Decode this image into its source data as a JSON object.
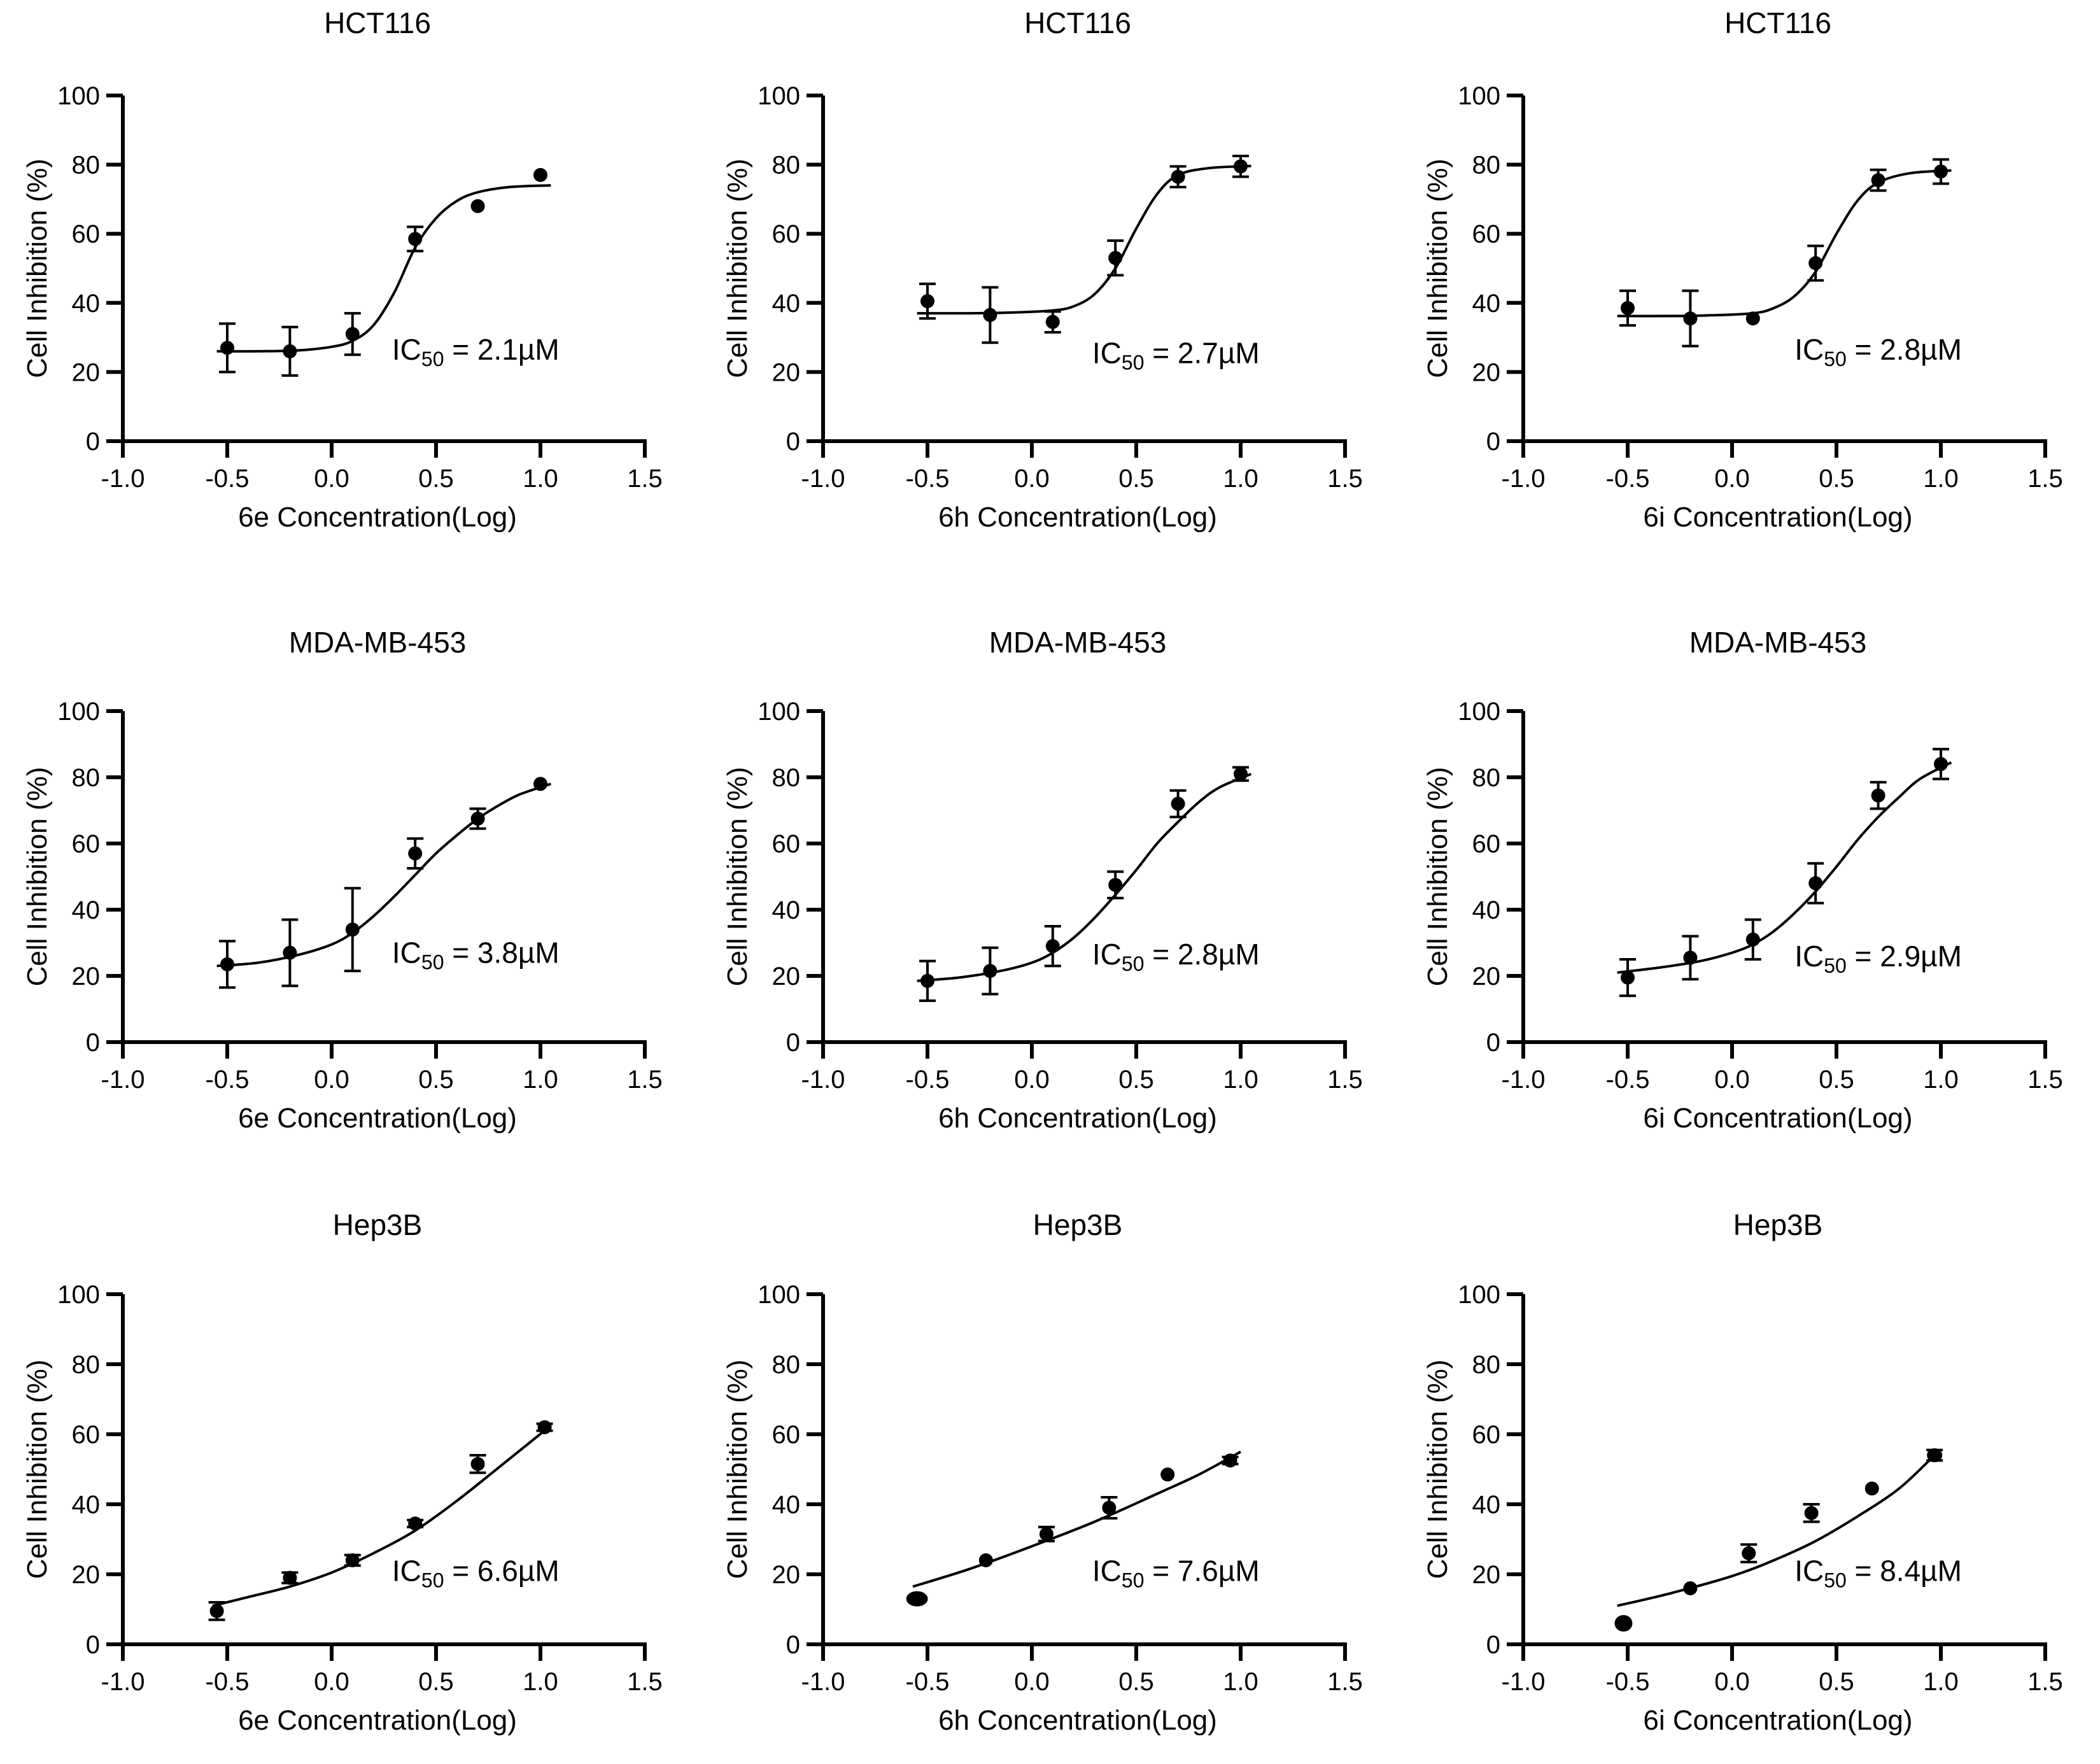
{
  "page": {
    "background": "#ffffff",
    "ink_color": "#000000",
    "figure_description": "3x3 grid of dose-response cell inhibition curves"
  },
  "axes": {
    "ylabel": "Cell Inhibition (%)",
    "y_ticks": [
      "0",
      "20",
      "40",
      "60",
      "80",
      "100"
    ],
    "x_ticks": [
      "-1.0",
      "-0.5",
      "0.0",
      "0.5",
      "1.0",
      "1.5"
    ],
    "xlim": [
      -1.0,
      1.5
    ],
    "ylim": [
      0,
      100
    ],
    "grid": "off",
    "legend": "none"
  },
  "chart_data": [
    {
      "type": "scatter",
      "cell_line": "HCT116",
      "compound": "6e",
      "title": "HCT116",
      "xlabel": "6e Concentration(Log)",
      "ylabel": "Cell Inhibition (%)",
      "ic50_label": {
        "main": "IC",
        "sub": "50",
        "rest": " = 2.1µM"
      },
      "ic50_text": "IC50 = 2.1µM",
      "x": [
        -0.5,
        -0.2,
        0.1,
        0.4,
        0.7,
        1.0
      ],
      "y": [
        27,
        26,
        31,
        58.5,
        68,
        77
      ],
      "err": [
        7,
        7,
        6,
        3.5,
        0,
        0
      ],
      "curve": [
        [
          -0.55,
          26
        ],
        [
          -0.35,
          26
        ],
        [
          -0.15,
          26.3
        ],
        [
          0.0,
          27.3
        ],
        [
          0.1,
          29
        ],
        [
          0.2,
          33.5
        ],
        [
          0.3,
          43
        ],
        [
          0.4,
          56
        ],
        [
          0.5,
          64.5
        ],
        [
          0.6,
          69.5
        ],
        [
          0.7,
          72
        ],
        [
          0.85,
          73.5
        ],
        [
          1.05,
          74
        ]
      ],
      "anno_pos": [
        0.69,
        26.5
      ],
      "xlim": [
        -1.0,
        1.5
      ],
      "ylim": [
        0,
        100
      ]
    },
    {
      "type": "scatter",
      "cell_line": "HCT116",
      "compound": "6h",
      "title": "HCT116",
      "xlabel": "6h Concentration(Log)",
      "ylabel": "Cell Inhibition (%)",
      "ic50_label": {
        "main": "IC",
        "sub": "50",
        "rest": " = 2.7µM"
      },
      "ic50_text": "IC50 = 2.7µM",
      "x": [
        -0.5,
        -0.2,
        0.1,
        0.4,
        0.7,
        1.0
      ],
      "y": [
        40.5,
        36.5,
        34.5,
        53,
        76.5,
        79.5
      ],
      "err": [
        5,
        8,
        3,
        5,
        3,
        3
      ],
      "curve": [
        [
          -0.55,
          37
        ],
        [
          -0.3,
          37
        ],
        [
          -0.1,
          37.2
        ],
        [
          0.1,
          37.8
        ],
        [
          0.2,
          39
        ],
        [
          0.3,
          42.5
        ],
        [
          0.4,
          50
        ],
        [
          0.5,
          61.5
        ],
        [
          0.6,
          71.5
        ],
        [
          0.7,
          77
        ],
        [
          0.85,
          79
        ],
        [
          1.05,
          79.6
        ]
      ],
      "anno_pos": [
        0.69,
        25.5
      ],
      "xlim": [
        -1.0,
        1.5
      ],
      "ylim": [
        0,
        100
      ]
    },
    {
      "type": "scatter",
      "cell_line": "HCT116",
      "compound": "6i",
      "title": "HCT116",
      "xlabel": "6i Concentration(Log)",
      "ylabel": "Cell Inhibition (%)",
      "ic50_label": {
        "main": "IC",
        "sub": "50",
        "rest": " = 2.8µM"
      },
      "ic50_text": "IC50 = 2.8µM",
      "x": [
        -0.5,
        -0.2,
        0.1,
        0.4,
        0.7,
        1.0
      ],
      "y": [
        38.5,
        35.5,
        35.5,
        51.5,
        75.5,
        78
      ],
      "err": [
        5,
        8,
        0,
        5,
        3,
        3.5
      ],
      "curve": [
        [
          -0.55,
          36.2
        ],
        [
          -0.3,
          36.2
        ],
        [
          -0.1,
          36.4
        ],
        [
          0.1,
          37
        ],
        [
          0.2,
          38.5
        ],
        [
          0.3,
          42
        ],
        [
          0.4,
          49
        ],
        [
          0.5,
          60
        ],
        [
          0.6,
          69.5
        ],
        [
          0.7,
          74.8
        ],
        [
          0.85,
          77.5
        ],
        [
          1.05,
          78.3
        ]
      ],
      "anno_pos": [
        0.7,
        26.5
      ],
      "xlim": [
        -1.0,
        1.5
      ],
      "ylim": [
        0,
        100
      ]
    },
    {
      "type": "scatter",
      "cell_line": "MDA-MB-453",
      "compound": "6e",
      "title": "MDA-MB-453",
      "xlabel": "6e Concentration(Log)",
      "ylabel": "Cell Inhibition (%)",
      "ic50_label": {
        "main": "IC",
        "sub": "50",
        "rest": " = 3.8µM"
      },
      "ic50_text": "IC50 = 3.8µM",
      "x": [
        -0.5,
        -0.2,
        0.1,
        0.4,
        0.7,
        1.0
      ],
      "y": [
        23.5,
        27,
        34,
        57,
        67.5,
        78
      ],
      "err": [
        7,
        10,
        12.5,
        4.5,
        3,
        0
      ],
      "curve": [
        [
          -0.55,
          23
        ],
        [
          -0.35,
          24
        ],
        [
          -0.15,
          26.5
        ],
        [
          0.0,
          29.5
        ],
        [
          0.1,
          33
        ],
        [
          0.2,
          38
        ],
        [
          0.3,
          44
        ],
        [
          0.4,
          50.5
        ],
        [
          0.5,
          57
        ],
        [
          0.6,
          62.5
        ],
        [
          0.7,
          67.5
        ],
        [
          0.8,
          71.5
        ],
        [
          0.9,
          74.8
        ],
        [
          1.05,
          78
        ]
      ],
      "anno_pos": [
        0.69,
        27
      ],
      "xlim": [
        -1.0,
        1.5
      ],
      "ylim": [
        0,
        100
      ]
    },
    {
      "type": "scatter",
      "cell_line": "MDA-MB-453",
      "compound": "6h",
      "title": "MDA-MB-453",
      "xlabel": "6h Concentration(Log)",
      "ylabel": "Cell Inhibition (%)",
      "ic50_label": {
        "main": "IC",
        "sub": "50",
        "rest": " = 2.8µM"
      },
      "ic50_text": "IC50 = 2.8µM",
      "x": [
        -0.5,
        -0.2,
        0.1,
        0.4,
        0.7,
        1.0
      ],
      "y": [
        18.5,
        21.5,
        29,
        47.5,
        72,
        81
      ],
      "err": [
        6,
        7,
        6,
        4,
        4,
        2
      ],
      "curve": [
        [
          -0.55,
          18.5
        ],
        [
          -0.35,
          19.5
        ],
        [
          -0.15,
          21.5
        ],
        [
          0.0,
          24
        ],
        [
          0.1,
          27
        ],
        [
          0.2,
          31.5
        ],
        [
          0.3,
          37.5
        ],
        [
          0.4,
          44.5
        ],
        [
          0.5,
          52
        ],
        [
          0.6,
          60
        ],
        [
          0.7,
          66.5
        ],
        [
          0.8,
          72.5
        ],
        [
          0.9,
          77
        ],
        [
          1.05,
          81
        ]
      ],
      "anno_pos": [
        0.69,
        26.5
      ],
      "xlim": [
        -1.0,
        1.5
      ],
      "ylim": [
        0,
        100
      ]
    },
    {
      "type": "scatter",
      "cell_line": "MDA-MB-453",
      "compound": "6i",
      "title": "MDA-MB-453",
      "xlabel": "6i Concentration(Log)",
      "ylabel": "Cell Inhibition (%)",
      "ic50_label": {
        "main": "IC",
        "sub": "50",
        "rest": " = 2.9µM"
      },
      "ic50_text": "IC50 = 2.9µM",
      "x": [
        -0.5,
        -0.2,
        0.1,
        0.4,
        0.7,
        1.0
      ],
      "y": [
        19.5,
        25.5,
        31,
        48,
        74.5,
        84
      ],
      "err": [
        5.5,
        6.5,
        6,
        6,
        4,
        4.5
      ],
      "curve": [
        [
          -0.55,
          21
        ],
        [
          -0.35,
          22.5
        ],
        [
          -0.15,
          24.5
        ],
        [
          0.0,
          27
        ],
        [
          0.1,
          29.5
        ],
        [
          0.2,
          33.5
        ],
        [
          0.3,
          39
        ],
        [
          0.4,
          45.5
        ],
        [
          0.5,
          53
        ],
        [
          0.6,
          61
        ],
        [
          0.7,
          68
        ],
        [
          0.8,
          74
        ],
        [
          0.9,
          79.5
        ],
        [
          1.05,
          84.5
        ]
      ],
      "anno_pos": [
        0.7,
        26
      ],
      "xlim": [
        -1.0,
        1.5
      ],
      "ylim": [
        0,
        100
      ]
    },
    {
      "type": "scatter",
      "cell_line": "Hep3B",
      "compound": "6e",
      "title": "Hep3B",
      "xlabel": "6e Concentration(Log)",
      "ylabel": "Cell Inhibition (%)",
      "ic50_label": {
        "main": "IC",
        "sub": "50",
        "rest": " = 6.6µM"
      },
      "ic50_text": "IC50 = 6.6µM",
      "x": [
        -0.55,
        -0.2,
        0.1,
        0.4,
        0.7,
        1.02
      ],
      "y": [
        9.5,
        19,
        24,
        34.5,
        51.5,
        62
      ],
      "err": [
        2.5,
        1.5,
        1.5,
        1,
        2.5,
        1
      ],
      "curve": [
        [
          -0.57,
          11
        ],
        [
          -0.4,
          13.5
        ],
        [
          -0.2,
          16.5
        ],
        [
          0.0,
          20.5
        ],
        [
          0.2,
          26
        ],
        [
          0.4,
          32.5
        ],
        [
          0.6,
          41
        ],
        [
          0.8,
          50.5
        ],
        [
          1.05,
          62.5
        ]
      ],
      "anno_pos": [
        0.69,
        21
      ],
      "xlim": [
        -1.0,
        1.5
      ],
      "ylim": [
        0,
        100
      ]
    },
    {
      "type": "scatter",
      "cell_line": "Hep3B",
      "compound": "6h",
      "title": "Hep3B",
      "xlabel": "6h Concentration(Log)",
      "ylabel": "Cell Inhibition (%)",
      "ic50_label": {
        "main": "IC",
        "sub": "50",
        "rest": " = 7.6µM"
      },
      "ic50_text": "IC50 = 7.6µM",
      "x": [
        -0.55,
        -0.22,
        0.07,
        0.37,
        0.65,
        0.95
      ],
      "y": [
        13,
        24,
        31.5,
        39,
        48.5,
        52.5
      ],
      "err": [
        0,
        0,
        2,
        3,
        0,
        1
      ],
      "mrx": [
        17,
        11,
        11,
        11,
        11,
        11
      ],
      "mry": [
        12,
        11,
        11,
        11,
        11,
        11
      ],
      "curve": [
        [
          -0.57,
          16.5
        ],
        [
          -0.3,
          21.5
        ],
        [
          0.0,
          28
        ],
        [
          0.3,
          35
        ],
        [
          0.6,
          43
        ],
        [
          0.8,
          48.5
        ],
        [
          1.0,
          55
        ]
      ],
      "anno_pos": [
        0.69,
        21
      ],
      "xlim": [
        -1.0,
        1.5
      ],
      "ylim": [
        0,
        100
      ]
    },
    {
      "type": "scatter",
      "cell_line": "Hep3B",
      "compound": "6i",
      "title": "Hep3B",
      "xlabel": "6i Concentration(Log)",
      "ylabel": "Cell Inhibition (%)",
      "ic50_label": {
        "main": "IC",
        "sub": "50",
        "rest": " = 8.4µM"
      },
      "ic50_text": "IC50 = 8.4µM",
      "x": [
        -0.52,
        -0.2,
        0.08,
        0.38,
        0.67,
        0.97
      ],
      "y": [
        6,
        16,
        26,
        37.5,
        44.5,
        54
      ],
      "err": [
        0,
        0,
        2.5,
        2.5,
        0,
        1.5
      ],
      "mrx": [
        14,
        11,
        11,
        11,
        11,
        12
      ],
      "mry": [
        13,
        11,
        11,
        11,
        11,
        11
      ],
      "curve": [
        [
          -0.55,
          11
        ],
        [
          -0.3,
          14.5
        ],
        [
          0.0,
          19.5
        ],
        [
          0.2,
          24
        ],
        [
          0.4,
          29.5
        ],
        [
          0.6,
          36.5
        ],
        [
          0.8,
          44.5
        ],
        [
          0.97,
          54
        ],
        [
          1.0,
          55.5
        ]
      ],
      "anno_pos": [
        0.7,
        21
      ],
      "xlim": [
        -1.0,
        1.5
      ],
      "ylim": [
        0,
        100
      ]
    }
  ]
}
